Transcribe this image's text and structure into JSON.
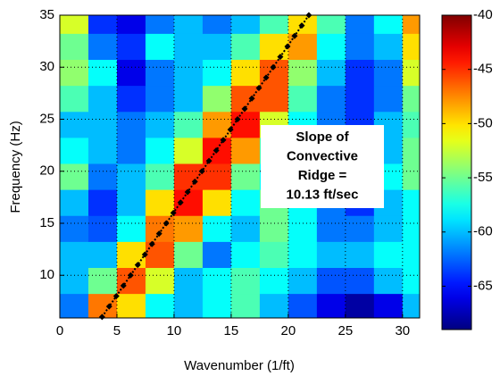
{
  "chart_data": {
    "type": "heatmap",
    "xlabel": "Wavenumber (1/ft)",
    "ylabel": "Frequency (Hz)",
    "xlim": [
      0,
      31.5
    ],
    "ylim": [
      5.9,
      35
    ],
    "xticks": [
      0,
      5,
      10,
      15,
      20,
      25,
      30
    ],
    "yticks": [
      10,
      15,
      20,
      25,
      30,
      35
    ],
    "grid": true,
    "colormap": "jet",
    "clim": [
      -69,
      -40
    ],
    "cticks": [
      -40,
      -45,
      -50,
      -55,
      -60,
      -65
    ],
    "x": [
      1.25,
      3.75,
      6.25,
      8.75,
      11.25,
      13.75,
      16.25,
      18.75,
      21.25,
      23.75,
      26.25,
      28.75,
      31.25
    ],
    "y": [
      7,
      9.5,
      12,
      14.5,
      17,
      19.5,
      22,
      24.5,
      27,
      29.5,
      32,
      34.5
    ],
    "z": [
      [
        -62,
        -47,
        -50,
        -58,
        -60,
        -58,
        -56,
        -60,
        -63,
        -66,
        -68,
        -66,
        -60
      ],
      [
        -60,
        -55,
        -46,
        -52,
        -60,
        -58,
        -56,
        -58,
        -60,
        -63,
        -63,
        -60,
        -58
      ],
      [
        -60,
        -60,
        -50,
        -46,
        -55,
        -62,
        -58,
        -56,
        -58,
        -60,
        -60,
        -58,
        -58
      ],
      [
        -62,
        -63,
        -58,
        -47,
        -48,
        -58,
        -60,
        -55,
        -58,
        -62,
        -62,
        -60,
        -58
      ],
      [
        -60,
        -64,
        -60,
        -50,
        -44,
        -50,
        -58,
        -55,
        -58,
        -62,
        -64,
        -60,
        -58
      ],
      [
        -55,
        -62,
        -60,
        -56,
        -45,
        -45,
        -55,
        -58,
        -60,
        -60,
        -60,
        -58,
        -55
      ],
      [
        -58,
        -60,
        -62,
        -58,
        -52,
        -44,
        -48,
        -56,
        -58,
        -58,
        -62,
        -60,
        -55
      ],
      [
        -60,
        -60,
        -62,
        -60,
        -56,
        -48,
        -44,
        -52,
        -58,
        -62,
        -64,
        -60,
        -56
      ],
      [
        -56,
        -60,
        -64,
        -62,
        -60,
        -54,
        -46,
        -46,
        -56,
        -62,
        -64,
        -62,
        -55
      ],
      [
        -54,
        -58,
        -66,
        -62,
        -60,
        -58,
        -50,
        -46,
        -54,
        -60,
        -64,
        -62,
        -52
      ],
      [
        -55,
        -62,
        -64,
        -58,
        -60,
        -60,
        -56,
        -50,
        -48,
        -58,
        -62,
        -60,
        -50
      ],
      [
        -52,
        -64,
        -66,
        -62,
        -60,
        -62,
        -60,
        -56,
        -50,
        -56,
        -62,
        -58,
        -48
      ]
    ],
    "line": {
      "color": "#000000",
      "x": [
        3.7,
        4.32,
        4.95,
        5.57,
        6.2,
        6.82,
        7.45,
        8.07,
        8.69,
        9.32,
        9.94,
        10.57,
        11.19,
        11.82,
        12.44,
        13.06,
        13.69,
        14.31,
        14.94,
        15.56,
        16.18,
        16.81,
        17.43,
        18.06,
        18.68,
        19.3,
        19.93,
        20.55,
        21.18,
        21.8
      ],
      "y": [
        6,
        7,
        8,
        9,
        10,
        11,
        12,
        13,
        14,
        15,
        16,
        17,
        18,
        19,
        20,
        21,
        22,
        23,
        24,
        25,
        26,
        27,
        28,
        29,
        30,
        31,
        32,
        33,
        34,
        35
      ]
    },
    "annotation": [
      "Slope of",
      "Convective",
      "Ridge =",
      "10.13 ft/sec"
    ]
  }
}
